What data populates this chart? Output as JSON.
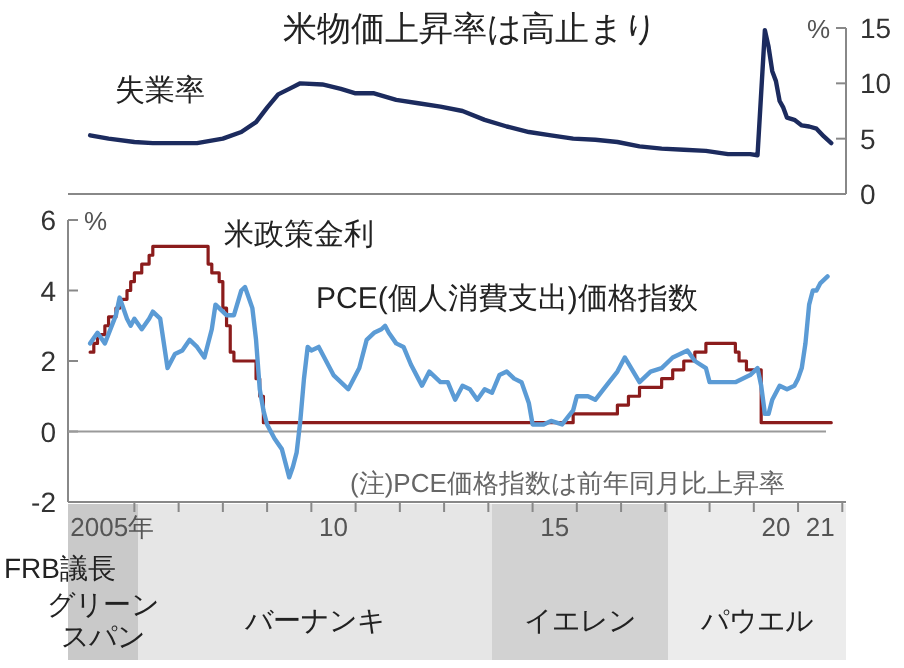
{
  "chart_data": [
    {
      "type": "line",
      "title": "米物価上昇率は高止まり",
      "ylabel": "%",
      "xlim": [
        "2004-07",
        "2022-02"
      ],
      "ylim": [
        0,
        15
      ],
      "yticks": [
        0,
        5,
        10,
        15
      ],
      "tick_labels": "y",
      "series": [
        {
          "name": "失業率",
          "color": "#1c2b5e",
          "x": [
            "2005-01",
            "2005-06",
            "2006-01",
            "2006-06",
            "2007-01",
            "2007-06",
            "2008-01",
            "2008-06",
            "2008-10",
            "2009-01",
            "2009-04",
            "2009-07",
            "2009-10",
            "2010-04",
            "2010-09",
            "2011-01",
            "2011-06",
            "2011-12",
            "2012-06",
            "2012-12",
            "2013-06",
            "2013-12",
            "2014-06",
            "2014-12",
            "2015-06",
            "2015-12",
            "2016-06",
            "2016-12",
            "2017-06",
            "2017-12",
            "2018-06",
            "2018-12",
            "2019-06",
            "2019-12",
            "2020-02",
            "2020-04",
            "2020-05",
            "2020-06",
            "2020-07",
            "2020-08",
            "2020-09",
            "2020-10",
            "2020-12",
            "2021-02",
            "2021-04",
            "2021-06",
            "2021-08",
            "2021-10"
          ],
          "values": [
            5.3,
            5.0,
            4.7,
            4.6,
            4.6,
            4.6,
            5.0,
            5.6,
            6.5,
            7.8,
            9.0,
            9.5,
            10.0,
            9.9,
            9.5,
            9.1,
            9.1,
            8.5,
            8.2,
            7.9,
            7.5,
            6.7,
            6.1,
            5.6,
            5.3,
            5.0,
            4.9,
            4.7,
            4.3,
            4.1,
            4.0,
            3.9,
            3.6,
            3.6,
            3.5,
            14.8,
            13.3,
            11.1,
            10.2,
            8.4,
            7.8,
            6.9,
            6.7,
            6.2,
            6.1,
            5.9,
            5.2,
            4.6
          ]
        }
      ]
    },
    {
      "type": "line",
      "ylabel": "%",
      "xlim": [
        "2004-07",
        "2022-02"
      ],
      "ylim": [
        -2,
        6
      ],
      "yticks": [
        -2,
        0,
        2,
        4,
        6
      ],
      "xticks": [
        {
          "value": "2006-01",
          "label": null
        },
        {
          "value": "2007-01",
          "label": null
        },
        {
          "value": "2008-01",
          "label": null
        },
        {
          "value": "2009-01",
          "label": null
        },
        {
          "value": "2010-01",
          "label": null
        },
        {
          "value": "2011-01",
          "label": null
        },
        {
          "value": "2012-01",
          "label": null
        },
        {
          "value": "2013-01",
          "label": null
        },
        {
          "value": "2014-01",
          "label": null
        },
        {
          "value": "2015-01",
          "label": null
        },
        {
          "value": "2016-01",
          "label": null
        },
        {
          "value": "2017-01",
          "label": null
        },
        {
          "value": "2018-01",
          "label": null
        },
        {
          "value": "2019-01",
          "label": null
        },
        {
          "value": "2020-01",
          "label": null
        },
        {
          "value": "2021-01",
          "label": null
        },
        {
          "value": "2022-01",
          "label": null
        },
        {
          "value": "2005-07",
          "label": "2005年"
        },
        {
          "value": "2010-07",
          "label": "10"
        },
        {
          "value": "2015-07",
          "label": "15"
        },
        {
          "value": "2020-07",
          "label": "20"
        },
        {
          "value": "2021-07",
          "label": "21"
        }
      ],
      "ref_lines": [
        {
          "axis": "y",
          "value": 0,
          "color": "#9a9a9a"
        }
      ],
      "annotations": [
        "(注)PCE価格指数は前年同月比上昇率"
      ],
      "series": [
        {
          "name": "米政策金利",
          "type": "step",
          "color": "#8b1c1c",
          "x": [
            "2005-01",
            "2005-02",
            "2005-03",
            "2005-05",
            "2005-06",
            "2005-08",
            "2005-09",
            "2005-11",
            "2005-12",
            "2006-01",
            "2006-03",
            "2006-05",
            "2006-06",
            "2007-09",
            "2007-10",
            "2007-12",
            "2008-01",
            "2008-02",
            "2008-03",
            "2008-04",
            "2008-10",
            "2008-11",
            "2008-12",
            "2015-12",
            "2016-12",
            "2017-03",
            "2017-06",
            "2017-12",
            "2018-03",
            "2018-06",
            "2018-09",
            "2018-12",
            "2019-08",
            "2019-09",
            "2019-11",
            "2020-03",
            "2020-04",
            "2021-10"
          ],
          "values": [
            2.25,
            2.5,
            2.75,
            3.0,
            3.25,
            3.5,
            3.75,
            4.0,
            4.25,
            4.5,
            4.75,
            5.0,
            5.25,
            4.75,
            4.5,
            4.25,
            3.5,
            3.0,
            2.25,
            2.0,
            1.5,
            1.0,
            0.25,
            0.5,
            0.75,
            1.0,
            1.25,
            1.5,
            1.75,
            2.0,
            2.25,
            2.5,
            2.25,
            2.0,
            1.75,
            0.25,
            0.25,
            0.25
          ]
        },
        {
          "name": "PCE(個人消費支出)価格指数",
          "type": "line",
          "color": "#5b9bd5",
          "x": [
            "2005-01",
            "2005-03",
            "2005-05",
            "2005-08",
            "2005-09",
            "2005-11",
            "2005-12",
            "2006-01",
            "2006-03",
            "2006-05",
            "2006-06",
            "2006-08",
            "2006-10",
            "2006-11",
            "2006-12",
            "2007-02",
            "2007-04",
            "2007-06",
            "2007-08",
            "2007-10",
            "2007-11",
            "2007-12",
            "2008-02",
            "2008-04",
            "2008-06",
            "2008-07",
            "2008-08",
            "2008-09",
            "2008-10",
            "2008-11",
            "2008-12",
            "2009-01",
            "2009-03",
            "2009-05",
            "2009-07",
            "2009-08",
            "2009-09",
            "2009-10",
            "2009-11",
            "2009-12",
            "2010-01",
            "2010-03",
            "2010-05",
            "2010-07",
            "2010-09",
            "2010-11",
            "2010-12",
            "2011-02",
            "2011-04",
            "2011-06",
            "2011-08",
            "2011-09",
            "2011-10",
            "2011-12",
            "2012-02",
            "2012-04",
            "2012-06",
            "2012-07",
            "2012-09",
            "2012-11",
            "2012-12",
            "2013-02",
            "2013-04",
            "2013-06",
            "2013-08",
            "2013-10",
            "2013-12",
            "2014-02",
            "2014-04",
            "2014-06",
            "2014-08",
            "2014-10",
            "2014-12",
            "2015-01",
            "2015-04",
            "2015-06",
            "2015-09",
            "2015-12",
            "2016-01",
            "2016-04",
            "2016-06",
            "2016-09",
            "2016-12",
            "2017-02",
            "2017-06",
            "2017-09",
            "2017-12",
            "2018-03",
            "2018-07",
            "2018-09",
            "2018-12",
            "2019-01",
            "2019-05",
            "2019-08",
            "2019-12",
            "2020-02",
            "2020-03",
            "2020-04",
            "2020-05",
            "2020-06",
            "2020-08",
            "2020-10",
            "2020-12",
            "2021-01",
            "2021-02",
            "2021-03",
            "2021-04",
            "2021-05",
            "2021-06",
            "2021-07",
            "2021-08",
            "2021-09"
          ],
          "values": [
            2.5,
            2.8,
            2.5,
            3.3,
            3.8,
            3.2,
            3.0,
            3.2,
            2.9,
            3.2,
            3.4,
            3.2,
            1.8,
            2.0,
            2.2,
            2.3,
            2.6,
            2.4,
            2.1,
            2.9,
            3.6,
            3.5,
            3.3,
            3.3,
            4.0,
            4.1,
            3.8,
            3.5,
            2.6,
            1.2,
            0.6,
            0.2,
            -0.2,
            -0.5,
            -1.3,
            -1.0,
            -0.6,
            0.3,
            1.5,
            2.4,
            2.3,
            2.4,
            2.0,
            1.6,
            1.4,
            1.2,
            1.4,
            1.8,
            2.6,
            2.8,
            2.9,
            3.0,
            2.8,
            2.5,
            2.4,
            1.9,
            1.5,
            1.3,
            1.7,
            1.5,
            1.4,
            1.4,
            0.9,
            1.3,
            1.2,
            0.9,
            1.2,
            1.1,
            1.6,
            1.7,
            1.5,
            1.4,
            0.8,
            0.2,
            0.2,
            0.3,
            0.2,
            0.6,
            1.0,
            1.0,
            0.9,
            1.3,
            1.7,
            2.1,
            1.4,
            1.7,
            1.8,
            2.1,
            2.3,
            2.0,
            1.8,
            1.4,
            1.4,
            1.4,
            1.6,
            1.8,
            1.3,
            0.5,
            0.5,
            0.9,
            1.3,
            1.2,
            1.3,
            1.5,
            1.8,
            2.5,
            3.6,
            4.0,
            4.0,
            4.2,
            4.3,
            4.4
          ]
        }
      ]
    },
    {
      "type": "other",
      "annotations": [
        "FRB議長",
        "グリーンスパン",
        "バーナンキ",
        "イエレン",
        "パウエル"
      ]
    }
  ]
}
